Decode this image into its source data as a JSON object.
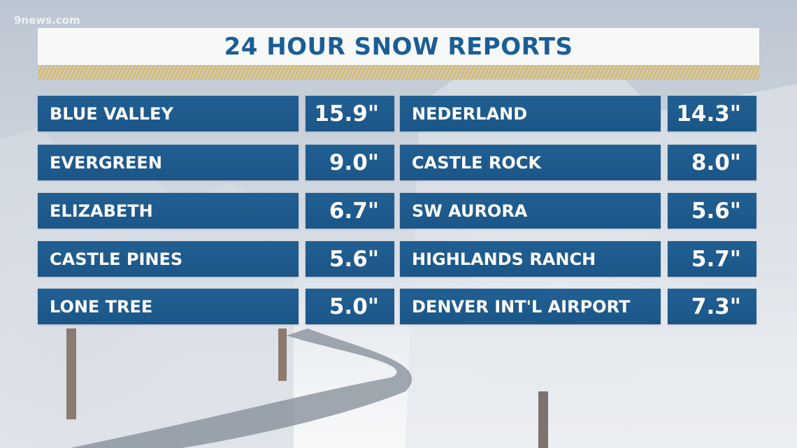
{
  "logo": "9news.com",
  "title": "24 HOUR SNOW REPORTS",
  "colors": {
    "accent_blue": "#1c5688",
    "title_text": "#1b5e96",
    "stripe_gold": "#e0b74f"
  },
  "left": [
    {
      "name": "BLUE VALLEY",
      "value": "15.9\""
    },
    {
      "name": "EVERGREEN",
      "value": "9.0\""
    },
    {
      "name": "ELIZABETH",
      "value": "6.7\""
    },
    {
      "name": "CASTLE PINES",
      "value": "5.6\""
    },
    {
      "name": "LONE TREE",
      "value": "5.0\""
    }
  ],
  "right": [
    {
      "name": "NEDERLAND",
      "value": "14.3\""
    },
    {
      "name": "CASTLE ROCK",
      "value": "8.0\""
    },
    {
      "name": "SW AURORA",
      "value": "5.6\""
    },
    {
      "name": "HIGHLANDS RANCH",
      "value": "5.7\""
    },
    {
      "name": "DENVER INT'L AIRPORT",
      "value": "7.3\""
    }
  ]
}
